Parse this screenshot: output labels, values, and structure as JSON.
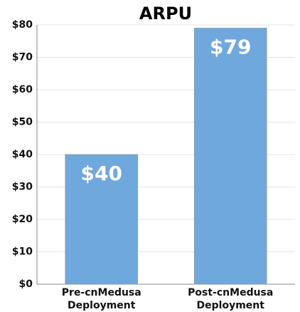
{
  "chart_data": {
    "type": "bar",
    "title": "ARPU",
    "categories": [
      "Pre-cnMedusa Deployment",
      "Post-cnMedusa Deployment"
    ],
    "values": [
      40,
      79
    ],
    "value_labels": [
      "$40",
      "$79"
    ],
    "color": "#6fa8dc",
    "ylim": [
      0,
      80
    ],
    "yticks": [
      {
        "value": 0,
        "label": "$0"
      },
      {
        "value": 10,
        "label": "$10"
      },
      {
        "value": 20,
        "label": "$20"
      },
      {
        "value": 30,
        "label": "$30"
      },
      {
        "value": 40,
        "label": "$40"
      },
      {
        "value": 50,
        "label": "$50"
      },
      {
        "value": 60,
        "label": "$60"
      },
      {
        "value": 70,
        "label": "$70"
      },
      {
        "value": 80,
        "label": "$80"
      }
    ],
    "grid": true
  }
}
